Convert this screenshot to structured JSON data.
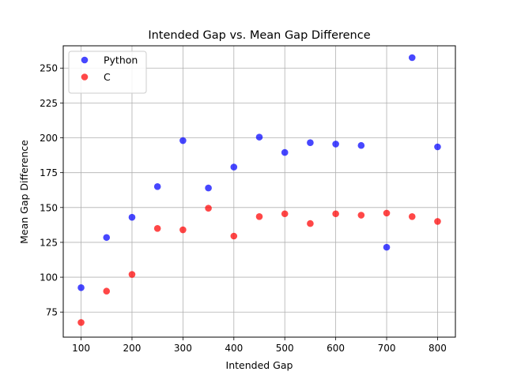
{
  "chart_data": {
    "type": "scatter",
    "title": "Intended Gap vs. Mean Gap Difference",
    "xlabel": "Intended Gap",
    "ylabel": "Mean Gap Difference",
    "xlim": [
      65,
      835
    ],
    "ylim": [
      57,
      266
    ],
    "xticks": [
      100,
      200,
      300,
      400,
      500,
      600,
      700,
      800
    ],
    "yticks": [
      75,
      100,
      125,
      150,
      175,
      200,
      225,
      250
    ],
    "grid": true,
    "legend_position": "top-left",
    "x": [
      100,
      150,
      200,
      250,
      300,
      350,
      400,
      450,
      500,
      550,
      600,
      650,
      700,
      750,
      800
    ],
    "series": [
      {
        "name": "Python",
        "color": "#0000ff",
        "values": [
          92.5,
          128.5,
          143.0,
          165.0,
          198.0,
          164.0,
          179.0,
          200.5,
          189.5,
          196.5,
          195.5,
          194.5,
          121.5,
          257.5,
          193.5
        ]
      },
      {
        "name": "C",
        "color": "#ff0000",
        "values": [
          67.5,
          90.0,
          102.0,
          135.0,
          134.0,
          149.5,
          129.5,
          143.5,
          145.5,
          138.5,
          145.5,
          144.5,
          146.0,
          143.5,
          140.0
        ]
      }
    ]
  }
}
